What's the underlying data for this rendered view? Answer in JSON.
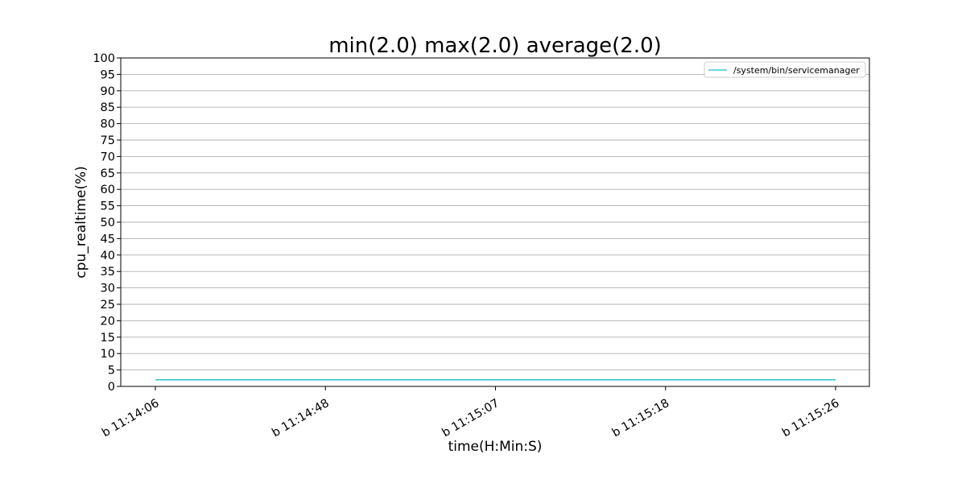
{
  "chart_data": {
    "type": "line",
    "title": "min(2.0) max(2.0) average(2.0)",
    "xlabel": "time(H:Min:S)",
    "ylabel": "cpu_realtime(%)",
    "categories": [
      "b 11:14:06",
      "b 11:14:48",
      "b 11:15:07",
      "b 11:15:18",
      "b 11:15:26"
    ],
    "series": [
      {
        "name": "/system/bin/servicemanager",
        "values": [
          2.0,
          2.0,
          2.0,
          2.0,
          2.0
        ],
        "color": "#17becf"
      }
    ],
    "ylim": [
      0,
      100
    ],
    "yticks": [
      "0",
      "5",
      "10",
      "15",
      "20",
      "25",
      "30",
      "35",
      "40",
      "45",
      "50",
      "55",
      "60",
      "65",
      "70",
      "75",
      "80",
      "85",
      "90",
      "95",
      "100"
    ],
    "grid": "horizontal",
    "legend_position": "top-right"
  }
}
